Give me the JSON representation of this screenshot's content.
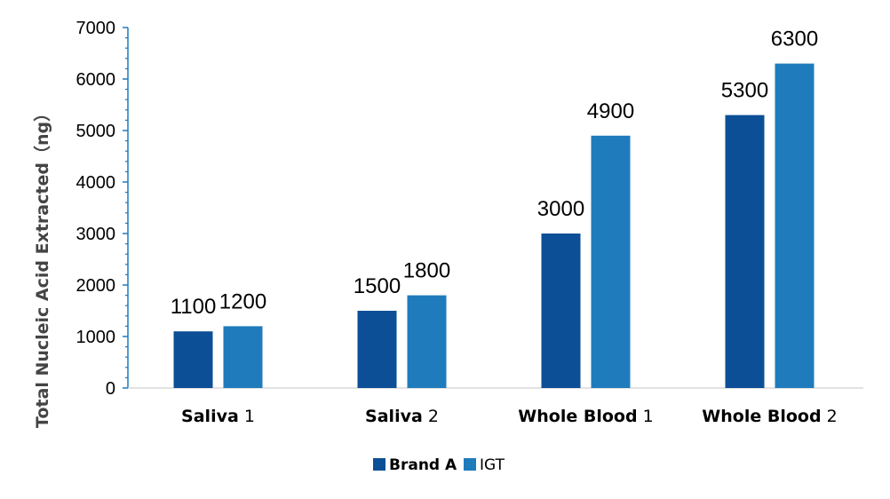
{
  "chart_data": {
    "type": "bar",
    "categories": [
      {
        "bold": "Saliva",
        "rest": " 1"
      },
      {
        "bold": "Saliva",
        "rest": " 2"
      },
      {
        "bold": "Whole Blood",
        "rest": " 1"
      },
      {
        "bold": "Whole Blood",
        "rest": " 2"
      }
    ],
    "series": [
      {
        "name": "Brand A",
        "color": "#0c4f96",
        "values": [
          1100,
          1500,
          3000,
          5300
        ]
      },
      {
        "name": "IGT",
        "color": "#1f7bbc",
        "values": [
          1200,
          1800,
          4900,
          6300
        ]
      }
    ],
    "ylabel": "Total Nucleic Acid Extracted（ng）",
    "xlabel": "",
    "title": "",
    "ylim": [
      0,
      7000
    ],
    "yticks": [
      0,
      1000,
      2000,
      3000,
      4000,
      5000,
      6000,
      7000
    ],
    "grid": false,
    "legend_position": "bottom",
    "axis_color": "#1f7bbc"
  }
}
